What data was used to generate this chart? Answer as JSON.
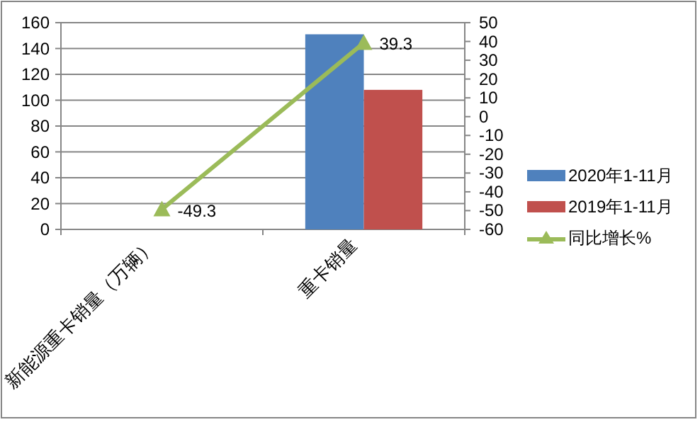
{
  "chart_data": {
    "type": "bar",
    "categories": [
      "新能源重卡销量（万辆）",
      "重卡销量"
    ],
    "series": [
      {
        "name": "2020年1-11月",
        "color": "#4f81bd",
        "values": [
          0,
          151
        ]
      },
      {
        "name": "2019年1-11月",
        "color": "#c0504d",
        "values": [
          0,
          108
        ]
      },
      {
        "name": "同比增长%",
        "type": "line",
        "axis": "y2",
        "color": "#9bbb59",
        "marker": "triangle",
        "line_style": "solid",
        "values": [
          -49.3,
          39.3
        ],
        "value_labels": [
          "-49.3",
          "39.3"
        ]
      }
    ],
    "ylim": [
      0,
      160
    ],
    "yticks": [
      0,
      20,
      40,
      60,
      80,
      100,
      120,
      140,
      160
    ],
    "y2lim": [
      -60,
      50
    ],
    "y2ticks": [
      -60,
      -50,
      -40,
      -30,
      -20,
      -10,
      0,
      10,
      20,
      30,
      40,
      50
    ],
    "grid": "y",
    "legend": "right"
  }
}
